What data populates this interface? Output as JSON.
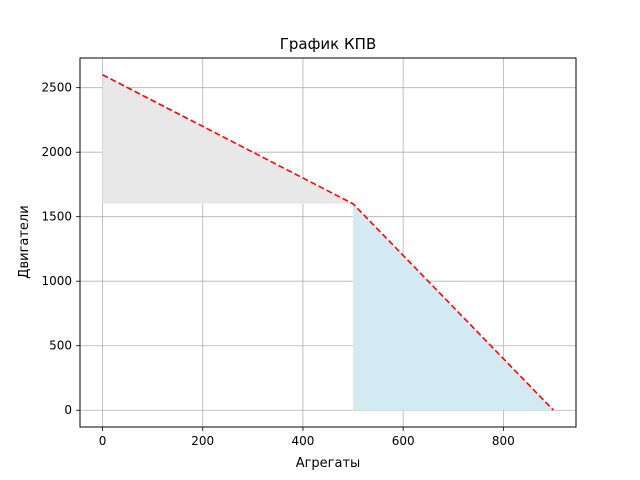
{
  "chart_data": {
    "type": "line",
    "title": "График КПВ",
    "xlabel": "Агрегаты",
    "ylabel": "Двигатели",
    "xlim": [
      -45,
      945
    ],
    "ylim": [
      -130,
      2730
    ],
    "x_ticks": [
      0,
      200,
      400,
      600,
      800
    ],
    "y_ticks": [
      0,
      500,
      1000,
      1500,
      2000,
      2500
    ],
    "grid": true,
    "series": [
      {
        "style": "dashed",
        "color": "#ff0000",
        "x": [
          0,
          500,
          900
        ],
        "y": [
          2600,
          1600,
          0
        ]
      }
    ],
    "filled_regions": [
      {
        "color": "#e8e8e8",
        "x": [
          0,
          500
        ],
        "y_upper": [
          2600,
          1600
        ],
        "y_lower": [
          1600,
          1600
        ]
      },
      {
        "color": "#d4eaf2",
        "x": [
          500,
          900
        ],
        "y_upper": [
          1600,
          0
        ],
        "y_lower": [
          0,
          0
        ]
      }
    ]
  }
}
